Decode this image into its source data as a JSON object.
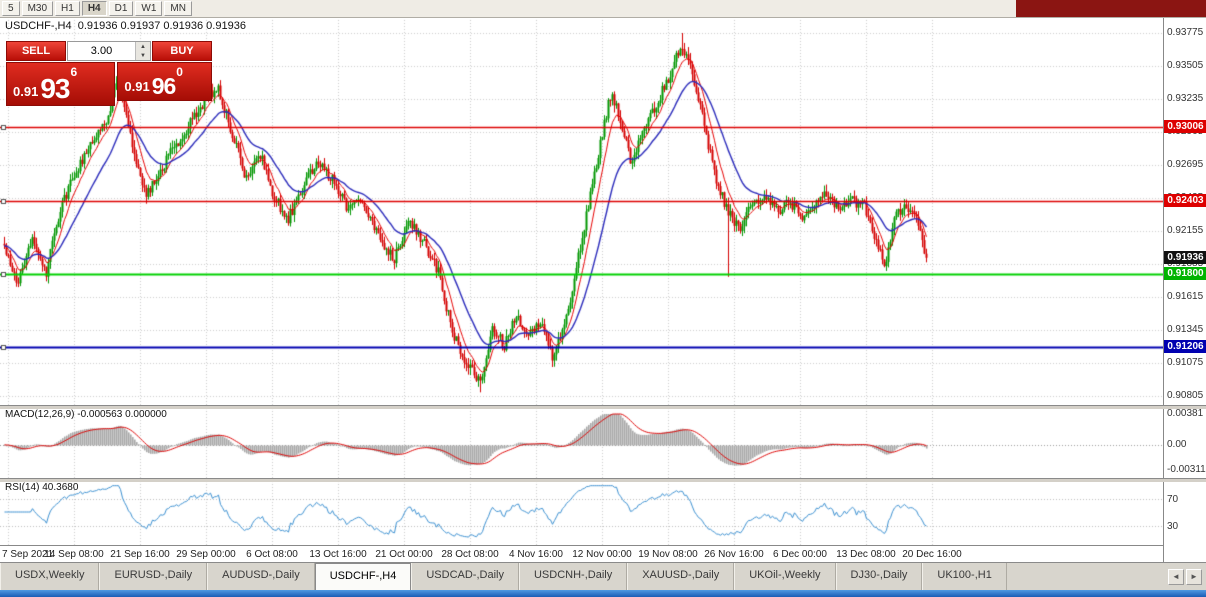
{
  "toolbar": {
    "timeframes": [
      "5",
      "M30",
      "H1",
      "H4",
      "D1",
      "W1",
      "MN"
    ],
    "active": "H4"
  },
  "chart": {
    "header_text": "USDCHF-,H4  0.91936 0.91937 0.91936 0.91936"
  },
  "trade_panel": {
    "sell_label": "SELL",
    "buy_label": "BUY",
    "volume": "3.00",
    "bid": {
      "prefix": "0.91",
      "big": "93",
      "sup": "6",
      "value": "0.91936"
    },
    "ask": {
      "prefix": "0.91",
      "big": "96",
      "sup": "0",
      "value": "0.91960"
    }
  },
  "price_axis_current_badge": {
    "text": "0.91936",
    "bg": "#111111"
  },
  "tabs": {
    "items": [
      "USDX,Weekly",
      "EURUSD-,Daily",
      "AUDUSD-,Daily",
      "USDCHF-,H4",
      "USDCAD-,Daily",
      "USDCNH-,Daily",
      "XAUUSD-,Daily",
      "UKOil-,Weekly",
      "DJ30-,Daily",
      "UK100-,H1"
    ],
    "active": "USDCHF-,H4"
  },
  "colors": {
    "bull": "#009600",
    "bear": "#d40000",
    "ma_fast": "#e60000",
    "ma_slow": "#2b2bbb",
    "grid": "#cccccc",
    "macd_hist": "#a8a8a8",
    "macd_signal": "#dd0000",
    "rsi_line": "#3a8fd0",
    "topbar_red": "#8b1512"
  },
  "chart_data": {
    "type": "candlestick",
    "symbol": "USDCHF-",
    "timeframe": "H4",
    "ohlc": {
      "open": 0.91936,
      "high": 0.91937,
      "low": 0.91936,
      "close": 0.91936
    },
    "y_min": 0.90805,
    "y_max": 0.93775,
    "y_axis_ticks": [
      "0.93775",
      "0.93505",
      "0.93235",
      "0.92965",
      "0.92695",
      "0.92425",
      "0.92155",
      "0.91885",
      "0.91615",
      "0.91345",
      "0.91075",
      "0.90805"
    ],
    "x_axis_labels": [
      "7 Sep 2021",
      "14 Sep 08:00",
      "21 Sep 16:00",
      "29 Sep 00:00",
      "6 Oct 08:00",
      "13 Oct 16:00",
      "21 Oct 00:00",
      "28 Oct 08:00",
      "4 Nov 16:00",
      "12 Nov 00:00",
      "19 Nov 08:00",
      "26 Nov 16:00",
      "6 Dec 00:00",
      "13 Dec 08:00",
      "20 Dec 16:00"
    ],
    "levels": [
      {
        "price": 0.93006,
        "label": "0.93006",
        "color": "#dd0000",
        "badge_bg": "#dd0000",
        "width": 1.4
      },
      {
        "price": 0.92403,
        "label": "0.92403",
        "color": "#dd0000",
        "badge_bg": "#dd0000",
        "width": 1.4
      },
      {
        "price": 0.918,
        "label": "0.91800",
        "color": "#00d000",
        "badge_bg": "#00b400",
        "width": 2
      },
      {
        "price": 0.91206,
        "label": "0.91206",
        "color": "#0000b0",
        "badge_bg": "#0000b0",
        "width": 2
      }
    ],
    "num_candles": 462,
    "price_path": [
      [
        4,
        0.9205
      ],
      [
        18,
        0.9172
      ],
      [
        32,
        0.921
      ],
      [
        46,
        0.9182
      ],
      [
        60,
        0.9235
      ],
      [
        75,
        0.9262
      ],
      [
        90,
        0.9285
      ],
      [
        105,
        0.9305
      ],
      [
        118,
        0.9338
      ],
      [
        130,
        0.9295
      ],
      [
        145,
        0.9243
      ],
      [
        158,
        0.9262
      ],
      [
        172,
        0.9282
      ],
      [
        188,
        0.9302
      ],
      [
        204,
        0.9322
      ],
      [
        218,
        0.9332
      ],
      [
        232,
        0.9295
      ],
      [
        246,
        0.9258
      ],
      [
        260,
        0.9278
      ],
      [
        274,
        0.9242
      ],
      [
        288,
        0.9226
      ],
      [
        303,
        0.9252
      ],
      [
        318,
        0.9274
      ],
      [
        333,
        0.9256
      ],
      [
        348,
        0.9232
      ],
      [
        362,
        0.9242
      ],
      [
        378,
        0.9212
      ],
      [
        394,
        0.9192
      ],
      [
        408,
        0.9224
      ],
      [
        424,
        0.9206
      ],
      [
        438,
        0.9182
      ],
      [
        452,
        0.9132
      ],
      [
        466,
        0.9107
      ],
      [
        480,
        0.9092
      ],
      [
        492,
        0.9136
      ],
      [
        504,
        0.9122
      ],
      [
        516,
        0.9146
      ],
      [
        528,
        0.9131
      ],
      [
        540,
        0.9141
      ],
      [
        552,
        0.9112
      ],
      [
        564,
        0.9135
      ],
      [
        577,
        0.919
      ],
      [
        589,
        0.9242
      ],
      [
        601,
        0.9292
      ],
      [
        611,
        0.933
      ],
      [
        621,
        0.9302
      ],
      [
        631,
        0.9272
      ],
      [
        644,
        0.93
      ],
      [
        657,
        0.9322
      ],
      [
        669,
        0.9342
      ],
      [
        681,
        0.937
      ],
      [
        693,
        0.9342
      ],
      [
        704,
        0.9302
      ],
      [
        714,
        0.9262
      ],
      [
        727,
        0.9232
      ],
      [
        739,
        0.9216
      ],
      [
        751,
        0.9236
      ],
      [
        764,
        0.9246
      ],
      [
        777,
        0.9231
      ],
      [
        789,
        0.9241
      ],
      [
        801,
        0.9226
      ],
      [
        814,
        0.9236
      ],
      [
        827,
        0.9246
      ],
      [
        839,
        0.9231
      ],
      [
        851,
        0.9241
      ],
      [
        864,
        0.9236
      ],
      [
        874,
        0.9212
      ],
      [
        884,
        0.9186
      ],
      [
        894,
        0.9226
      ],
      [
        904,
        0.9236
      ],
      [
        915,
        0.9226
      ],
      [
        926,
        0.91936
      ]
    ],
    "indicators": [
      {
        "type": "MACD",
        "title": "MACD(12,26,9) -0.000563 0.000000",
        "params": [
          12,
          26,
          9
        ],
        "axis_ticks": [
          "0.00381",
          "0.00",
          "-0.00311"
        ],
        "range": [
          -0.00311,
          0.00381
        ]
      },
      {
        "type": "RSI",
        "title": "RSI(14) 40.3680",
        "period": 14,
        "current": 40.368,
        "axis_ticks": [
          "70",
          "30"
        ],
        "levels": [
          70,
          30
        ],
        "range": [
          10,
          90
        ]
      }
    ]
  }
}
